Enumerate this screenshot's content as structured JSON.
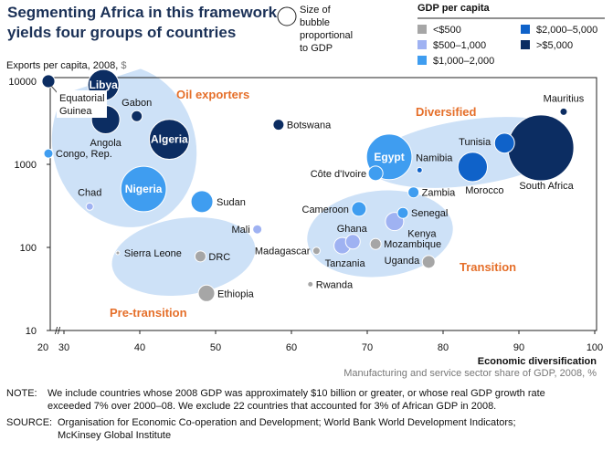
{
  "title_lines": [
    "Segmenting Africa in this framework",
    "yields four groups of countries"
  ],
  "size_legend": [
    "Size of",
    "bubble",
    "proportional",
    "to GDP"
  ],
  "colors": {
    "lt500": "#a6a6a6",
    "500_1000": "#9fb2f2",
    "1000_2000": "#3f9df0",
    "2000_5000": "#0f62c9",
    "gt5000": "#0c2d62",
    "group_fill": "#cde1f7",
    "group_label": "#e56f2a"
  },
  "chart_data": {
    "type": "scatter",
    "subtype": "bubble",
    "ylabel": "Exports per capita, 2008,",
    "ylabel_unit": "$",
    "xlabel": "Economic diversification",
    "xlabel_sub": "Manufacturing and service sector share of GDP, 2008, %",
    "x_ticks": [
      "20",
      "30",
      "40",
      "50",
      "60",
      "70",
      "80",
      "90",
      "100"
    ],
    "y_ticks": [
      "10",
      "100",
      "1000",
      "10000"
    ],
    "xlim": [
      20,
      100
    ],
    "x_axis_break": "between 20 and 30",
    "ylim": [
      10,
      10000
    ],
    "y_scale": "log",
    "grid": false,
    "legend": {
      "title": "GDP per capita",
      "entries": [
        {
          "key": "lt500",
          "label": "<$500"
        },
        {
          "key": "500_1000",
          "label": "$500–1,000"
        },
        {
          "key": "1000_2000",
          "label": "$1,000–2,000"
        },
        {
          "key": "2000_5000",
          "label": "$2,000–5,000"
        },
        {
          "key": "gt5000",
          "label": ">$5,000"
        }
      ],
      "placement": "top-right"
    },
    "groups": [
      {
        "name": "Oil exporters"
      },
      {
        "name": "Diversified"
      },
      {
        "name": "Transition"
      },
      {
        "name": "Pre-transition"
      }
    ],
    "points": [
      {
        "name": "Equatorial Guinea",
        "x": 22,
        "y": 10000,
        "gdp_rel": 0.5,
        "gdp_pc": "gt5000",
        "group": "Oil exporters"
      },
      {
        "name": "Libya",
        "x": 35.2,
        "y": 9000,
        "gdp_rel": 2.9,
        "gdp_pc": "gt5000",
        "group": "Oil exporters"
      },
      {
        "name": "Gabon",
        "x": 39.6,
        "y": 3800,
        "gdp_rel": 0.36,
        "gdp_pc": "gt5000",
        "group": "Oil exporters"
      },
      {
        "name": "Angola",
        "x": 35.5,
        "y": 3450,
        "gdp_rel": 2.4,
        "gdp_pc": "gt5000",
        "group": "Oil exporters"
      },
      {
        "name": "Algeria",
        "x": 43.9,
        "y": 2000,
        "gdp_rel": 4.8,
        "gdp_pc": "gt5000",
        "group": "Oil exporters"
      },
      {
        "name": "Congo, Rep.",
        "x": 29.2,
        "y": 1350,
        "gdp_rel": 0.25,
        "gdp_pc": "1000_2000",
        "group": "Oil exporters"
      },
      {
        "name": "Nigeria",
        "x": 40.5,
        "y": 505,
        "gdp_rel": 6.2,
        "gdp_pc": "1000_2000",
        "group": "Oil exporters"
      },
      {
        "name": "Chad",
        "x": 33.4,
        "y": 310,
        "gdp_rel": 0.16,
        "gdp_pc": "500_1000",
        "group": "Oil exporters"
      },
      {
        "name": "Sudan",
        "x": 48.2,
        "y": 355,
        "gdp_rel": 1.44,
        "gdp_pc": "1000_2000",
        "group": ""
      },
      {
        "name": "Botswana",
        "x": 58.3,
        "y": 3000,
        "gdp_rel": 0.36,
        "gdp_pc": "gt5000",
        "group": ""
      },
      {
        "name": "Mauritius",
        "x": 95.9,
        "y": 4300,
        "gdp_rel": 0.16,
        "gdp_pc": "gt5000",
        "group": "Diversified"
      },
      {
        "name": "Tunisia",
        "x": 88.1,
        "y": 1800,
        "gdp_rel": 1.2,
        "gdp_pc": "2000_5000",
        "group": "Diversified"
      },
      {
        "name": "South Africa",
        "x": 92.9,
        "y": 1580,
        "gdp_rel": 13,
        "gdp_pc": "gt5000",
        "group": "Diversified"
      },
      {
        "name": "Egypt",
        "x": 72.9,
        "y": 1230,
        "gdp_rel": 6.2,
        "gdp_pc": "1000_2000",
        "group": "Diversified"
      },
      {
        "name": "Namibia",
        "x": 76.9,
        "y": 850,
        "gdp_rel": 0.09,
        "gdp_pc": "2000_5000",
        "group": "Diversified"
      },
      {
        "name": "Morocco",
        "x": 83.9,
        "y": 930,
        "gdp_rel": 2.6,
        "gdp_pc": "2000_5000",
        "group": "Diversified"
      },
      {
        "name": "Côte d'Ivoire",
        "x": 71.1,
        "y": 780,
        "gdp_rel": 0.64,
        "gdp_pc": "1000_2000",
        "group": ""
      },
      {
        "name": "Zambia",
        "x": 76.1,
        "y": 460,
        "gdp_rel": 0.36,
        "gdp_pc": "1000_2000",
        "group": "Transition"
      },
      {
        "name": "Cameroon",
        "x": 68.9,
        "y": 290,
        "gdp_rel": 0.64,
        "gdp_pc": "1000_2000",
        "group": "Transition"
      },
      {
        "name": "Senegal",
        "x": 74.7,
        "y": 260,
        "gdp_rel": 0.36,
        "gdp_pc": "1000_2000",
        "group": "Transition"
      },
      {
        "name": "Kenya",
        "x": 73.6,
        "y": 205,
        "gdp_rel": 1.0,
        "gdp_pc": "500_1000",
        "group": "Transition"
      },
      {
        "name": "Ghana",
        "x": 68.1,
        "y": 117,
        "gdp_rel": 0.64,
        "gdp_pc": "500_1000",
        "group": "Transition"
      },
      {
        "name": "Tanzania",
        "x": 66.7,
        "y": 105,
        "gdp_rel": 0.81,
        "gdp_pc": "500_1000",
        "group": "Transition"
      },
      {
        "name": "Mozambique",
        "x": 71.1,
        "y": 110,
        "gdp_rel": 0.36,
        "gdp_pc": "lt500",
        "group": "Transition"
      },
      {
        "name": "Uganda",
        "x": 78.1,
        "y": 67,
        "gdp_rel": 0.49,
        "gdp_pc": "lt500",
        "group": "Transition"
      },
      {
        "name": "Madagascar",
        "x": 63.3,
        "y": 91,
        "gdp_rel": 0.16,
        "gdp_pc": "lt500",
        "group": ""
      },
      {
        "name": "Rwanda",
        "x": 62.5,
        "y": 36,
        "gdp_rel": 0.09,
        "gdp_pc": "lt500",
        "group": ""
      },
      {
        "name": "Mali",
        "x": 55.5,
        "y": 165,
        "gdp_rel": 0.25,
        "gdp_pc": "500_1000",
        "group": "Pre-transition"
      },
      {
        "name": "Sierra Leone",
        "x": 37.1,
        "y": 86,
        "gdp_rel": 0.04,
        "gdp_pc": "lt500",
        "group": "Pre-transition"
      },
      {
        "name": "DRC",
        "x": 48,
        "y": 78,
        "gdp_rel": 0.36,
        "gdp_pc": "lt500",
        "group": "Pre-transition"
      },
      {
        "name": "Ethiopia",
        "x": 48.8,
        "y": 28,
        "gdp_rel": 0.81,
        "gdp_pc": "lt500",
        "group": "Pre-transition"
      }
    ]
  },
  "note": {
    "label": "NOTE:",
    "lines": [
      "We include countries whose 2008 GDP was approximately $10 billion or greater, or whose real GDP growth rate",
      "exceeded 7% over 2000–08. We exclude 22 countries that accounted for 3% of African GDP in 2008."
    ]
  },
  "source": {
    "label": "SOURCE:",
    "lines": [
      "Organisation for Economic Co-operation and Development; World Bank World Development Indicators;",
      "McKinsey Global Institute"
    ]
  }
}
